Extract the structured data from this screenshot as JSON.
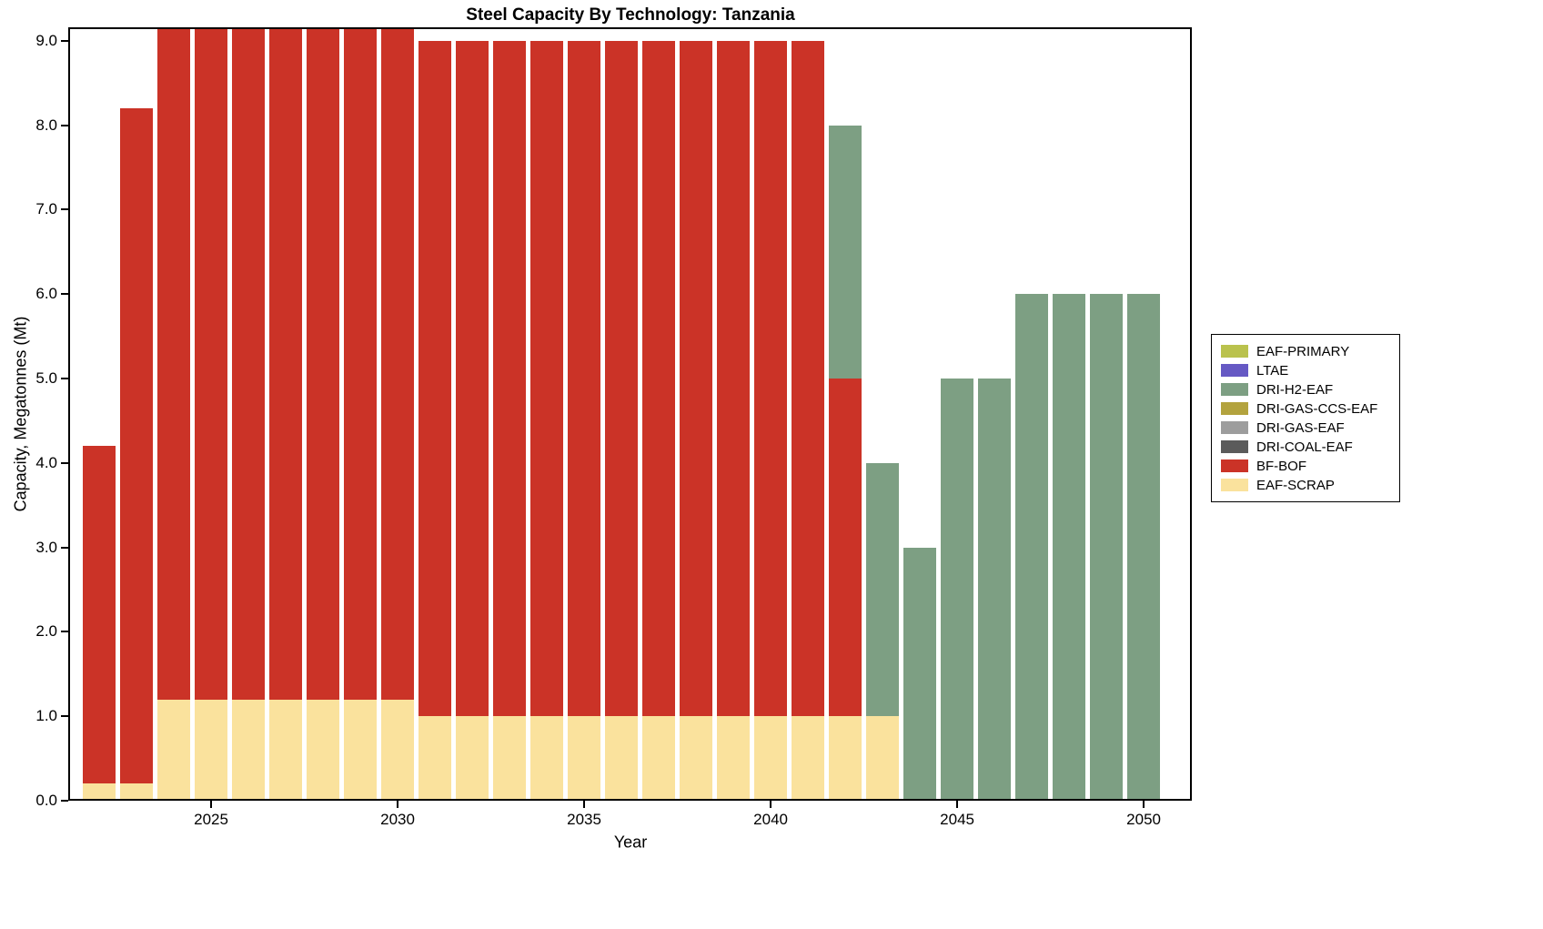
{
  "chart_data": {
    "type": "bar",
    "stacked": true,
    "title": "Steel Capacity By Technology: Tanzania",
    "xlabel": "Year",
    "ylabel": "Capacity, Megatonnes (Mt)",
    "x": [
      2022,
      2023,
      2024,
      2025,
      2026,
      2027,
      2028,
      2029,
      2030,
      2031,
      2032,
      2033,
      2034,
      2035,
      2036,
      2037,
      2038,
      2039,
      2040,
      2041,
      2042,
      2043,
      2044,
      2045,
      2046,
      2047,
      2048,
      2049,
      2050
    ],
    "series": [
      {
        "name": "EAF-SCRAP",
        "color": "#fae29d",
        "values": [
          0.2,
          0.2,
          1.2,
          1.2,
          1.2,
          1.2,
          1.2,
          1.2,
          1.2,
          1.0,
          1.0,
          1.0,
          1.0,
          1.0,
          1.0,
          1.0,
          1.0,
          1.0,
          1.0,
          1.0,
          1.0,
          1.0,
          0,
          0,
          0,
          0,
          0,
          0,
          0
        ]
      },
      {
        "name": "BF-BOF",
        "color": "#cb3327",
        "values": [
          4.0,
          8.0,
          8.0,
          8.0,
          8.0,
          8.0,
          8.0,
          8.0,
          8.0,
          8.0,
          8.0,
          8.0,
          8.0,
          8.0,
          8.0,
          8.0,
          8.0,
          8.0,
          8.0,
          8.0,
          4.0,
          0,
          0,
          0,
          0,
          0,
          0,
          0,
          0
        ]
      },
      {
        "name": "DRI-COAL-EAF",
        "color": "#5b5b5b",
        "values": [
          0,
          0,
          0,
          0,
          0,
          0,
          0,
          0,
          0,
          0,
          0,
          0,
          0,
          0,
          0,
          0,
          0,
          0,
          0,
          0,
          0,
          0,
          0,
          0,
          0,
          0,
          0,
          0,
          0
        ]
      },
      {
        "name": "DRI-GAS-EAF",
        "color": "#9d9d9d",
        "values": [
          0,
          0,
          0,
          0,
          0,
          0,
          0,
          0,
          0,
          0,
          0,
          0,
          0,
          0,
          0,
          0,
          0,
          0,
          0,
          0,
          0,
          0,
          0,
          0,
          0,
          0,
          0,
          0,
          0
        ]
      },
      {
        "name": "DRI-GAS-CCS-EAF",
        "color": "#b3a33e",
        "values": [
          0,
          0,
          0,
          0,
          0,
          0,
          0,
          0,
          0,
          0,
          0,
          0,
          0,
          0,
          0,
          0,
          0,
          0,
          0,
          0,
          0,
          0,
          0,
          0,
          0,
          0,
          0,
          0,
          0
        ]
      },
      {
        "name": "DRI-H2-EAF",
        "color": "#7d9f83",
        "values": [
          0,
          0,
          0,
          0,
          0,
          0,
          0,
          0,
          0,
          0,
          0,
          0,
          0,
          0,
          0,
          0,
          0,
          0,
          0,
          0,
          3.0,
          3.0,
          3.0,
          5.0,
          5.0,
          6.0,
          6.0,
          6.0,
          6.0
        ]
      },
      {
        "name": "LTAE",
        "color": "#6659c4",
        "values": [
          0,
          0,
          0,
          0,
          0,
          0,
          0,
          0,
          0,
          0,
          0,
          0,
          0,
          0,
          0,
          0,
          0,
          0,
          0,
          0,
          0,
          0,
          0,
          0,
          0,
          0,
          0,
          0,
          0
        ]
      },
      {
        "name": "EAF-PRIMARY",
        "color": "#bac24d",
        "values": [
          0,
          0,
          0,
          0,
          0,
          0,
          0,
          0,
          0,
          0,
          0,
          0,
          0,
          0,
          0,
          0,
          0,
          0,
          0,
          0,
          0,
          0,
          0,
          0,
          0,
          0,
          0,
          0,
          0
        ]
      }
    ],
    "legend_order": [
      "EAF-PRIMARY",
      "LTAE",
      "DRI-H2-EAF",
      "DRI-GAS-CCS-EAF",
      "DRI-GAS-EAF",
      "DRI-COAL-EAF",
      "BF-BOF",
      "EAF-SCRAP"
    ],
    "legend_position": "outside-right",
    "grid": false,
    "ylim": [
      0,
      9.16
    ],
    "xlim": [
      2021.17,
      2051.29
    ],
    "yticks": [
      0,
      1,
      2,
      3,
      4,
      5,
      6,
      7,
      8,
      9
    ],
    "ytick_labels": [
      "0.0",
      "1.0",
      "2.0",
      "3.0",
      "4.0",
      "5.0",
      "6.0",
      "7.0",
      "8.0",
      "9.0"
    ],
    "xticks": [
      2025,
      2030,
      2035,
      2040,
      2045,
      2050
    ]
  }
}
